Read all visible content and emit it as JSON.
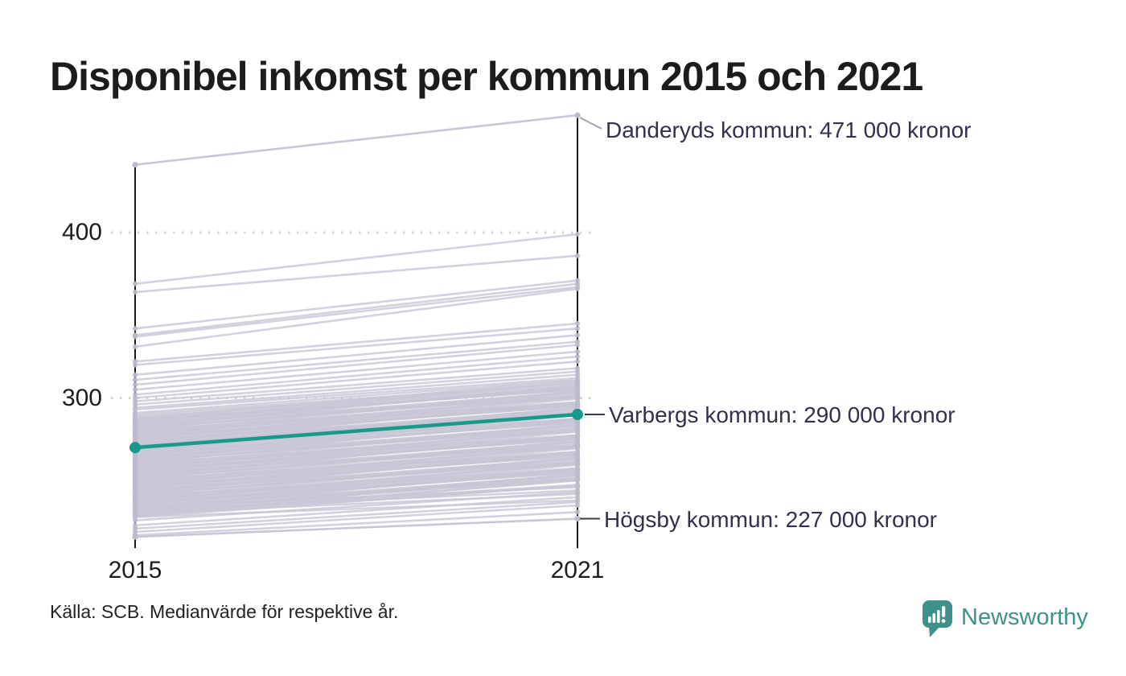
{
  "title": {
    "text": "Disponibel inkomst per kommun 2015 och 2021"
  },
  "source": {
    "text": "Källa: SCB. Medianvärde för respektive år."
  },
  "branding": {
    "name": "Newsworthy",
    "color": "#3E918A",
    "logo_icon": "speech-bubble-bar-chart-icon"
  },
  "colors": {
    "accent_teal": "#18998b",
    "line_gray": "#c8c6d5",
    "marker_gray": "#bcbacb",
    "axis_black": "#000000",
    "grid_dot_gray": "#d4d4d4",
    "annotation_text": "#30314a",
    "title_text": "#1c1c1a"
  },
  "chart_data": {
    "type": "line",
    "subtype": "slopegraph",
    "title": "Disponibel inkomst per kommun 2015 och 2021",
    "x_categories": [
      "2015",
      "2021"
    ],
    "y_ticks": [
      400,
      300
    ],
    "ylim": [
      210,
      480
    ],
    "values_unit": "kronor (tusental)",
    "grid": "dotted horizontal at y ticks",
    "legend": "none",
    "annotations": [
      {
        "id": "danderyd",
        "text": "Danderyds kommun: 471 000 kronor"
      },
      {
        "id": "varberg",
        "text": "Varbergs kommun: 290 000 kronor"
      },
      {
        "id": "hogsby",
        "text": "Högsby kommun: 227 000 kronor"
      }
    ],
    "highlight_series": [
      {
        "name": "Danderyds kommun",
        "values": [
          441,
          471
        ],
        "style": "neutral"
      },
      {
        "name": "Varbergs kommun",
        "values": [
          270,
          290
        ],
        "style": "accent"
      },
      {
        "name": "Högsby kommun",
        "values": [
          216,
          227
        ],
        "style": "neutral"
      }
    ],
    "background_lines": [
      [
        369,
        399
      ],
      [
        364,
        386
      ],
      [
        342,
        371
      ],
      [
        338,
        369
      ],
      [
        337,
        367
      ],
      [
        331,
        366
      ],
      [
        322,
        345
      ],
      [
        320,
        342
      ],
      [
        314,
        338
      ],
      [
        311,
        334
      ],
      [
        308,
        332
      ],
      [
        305,
        328
      ],
      [
        302,
        325
      ],
      [
        300,
        322
      ],
      [
        298,
        318
      ],
      [
        296,
        316
      ],
      [
        294,
        314
      ],
      [
        293,
        312
      ],
      [
        291,
        311
      ],
      [
        290,
        309
      ],
      [
        289,
        308
      ],
      [
        288,
        307
      ],
      [
        228,
        247
      ],
      [
        228.5,
        250.5
      ],
      [
        229,
        247
      ],
      [
        229.5,
        253.5
      ],
      [
        230,
        250
      ],
      [
        230.5,
        247.5
      ],
      [
        231,
        254
      ],
      [
        231.5,
        252.5
      ],
      [
        232,
        251
      ],
      [
        232.5,
        257.5
      ],
      [
        233,
        251
      ],
      [
        233.5,
        253.5
      ],
      [
        234,
        256
      ],
      [
        234.5,
        251.5
      ],
      [
        235,
        256
      ],
      [
        235.5,
        259.5
      ],
      [
        236,
        255
      ],
      [
        236.5,
        256.5
      ],
      [
        237,
        255
      ],
      [
        237.5,
        260.5
      ],
      [
        238,
        257
      ],
      [
        238.5,
        260.5
      ],
      [
        239,
        257
      ],
      [
        239.5,
        263.5
      ],
      [
        240,
        260
      ],
      [
        240.5,
        257.5
      ],
      [
        241,
        264
      ],
      [
        241.5,
        262.5
      ],
      [
        242,
        261
      ],
      [
        242.5,
        267.5
      ],
      [
        243,
        261
      ],
      [
        243.5,
        263.5
      ],
      [
        244,
        266
      ],
      [
        244.5,
        261.5
      ],
      [
        245,
        266
      ],
      [
        245.5,
        269.5
      ],
      [
        246,
        265
      ],
      [
        246.5,
        266.5
      ],
      [
        247,
        265
      ],
      [
        247.5,
        270.5
      ],
      [
        248,
        267
      ],
      [
        248.5,
        270.5
      ],
      [
        249,
        267
      ],
      [
        249.5,
        273.5
      ],
      [
        250,
        270
      ],
      [
        250.5,
        267.5
      ],
      [
        251,
        274
      ],
      [
        251.5,
        272.5
      ],
      [
        252,
        271
      ],
      [
        252.5,
        277.5
      ],
      [
        253,
        271
      ],
      [
        253.5,
        273.5
      ],
      [
        254,
        276
      ],
      [
        254.5,
        271.5
      ],
      [
        255,
        276
      ],
      [
        255.5,
        279.5
      ],
      [
        256,
        275
      ],
      [
        256.5,
        276.5
      ],
      [
        257,
        275
      ],
      [
        257.5,
        280.5
      ],
      [
        258,
        277
      ],
      [
        258.5,
        280.5
      ],
      [
        259,
        277
      ],
      [
        259.5,
        283.5
      ],
      [
        260,
        280
      ],
      [
        260.5,
        277.5
      ],
      [
        261,
        284
      ],
      [
        261.5,
        282.5
      ],
      [
        262,
        281
      ],
      [
        262.5,
        287.5
      ],
      [
        263,
        281
      ],
      [
        263.5,
        283.5
      ],
      [
        264,
        286
      ],
      [
        264.5,
        281.5
      ],
      [
        265,
        286
      ],
      [
        265.5,
        289.5
      ],
      [
        266,
        285
      ],
      [
        266.5,
        286.5
      ],
      [
        267,
        285
      ],
      [
        267.5,
        290.5
      ],
      [
        268,
        287
      ],
      [
        268.5,
        290.5
      ],
      [
        269,
        287
      ],
      [
        269.5,
        293.5
      ],
      [
        270,
        290
      ],
      [
        270.5,
        287.5
      ],
      [
        271,
        294
      ],
      [
        271.5,
        292.5
      ],
      [
        272,
        291
      ],
      [
        272.5,
        297.5
      ],
      [
        273,
        291
      ],
      [
        273.5,
        293.5
      ],
      [
        274,
        296
      ],
      [
        274.5,
        291.5
      ],
      [
        275,
        296
      ],
      [
        275.5,
        299.5
      ],
      [
        276,
        295
      ],
      [
        276.5,
        296.5
      ],
      [
        277,
        295
      ],
      [
        277.5,
        300.5
      ],
      [
        278,
        297
      ],
      [
        278.5,
        300.5
      ],
      [
        279,
        297
      ],
      [
        279.5,
        303.5
      ],
      [
        280,
        300
      ],
      [
        280.5,
        297.5
      ],
      [
        281,
        304
      ],
      [
        281.5,
        302.5
      ],
      [
        282,
        301
      ],
      [
        282.5,
        307.5
      ],
      [
        283,
        301
      ],
      [
        283.5,
        303.5
      ],
      [
        284,
        306
      ],
      [
        284.5,
        301.5
      ],
      [
        285,
        306
      ],
      [
        285.5,
        309.5
      ],
      [
        286,
        305
      ],
      [
        286.5,
        306.5
      ],
      [
        287,
        305
      ],
      [
        287.5,
        310.5
      ],
      [
        228,
        238
      ],
      [
        230,
        242
      ],
      [
        232,
        244
      ],
      [
        234,
        246
      ],
      [
        226,
        243
      ],
      [
        223,
        240
      ],
      [
        221,
        237
      ],
      [
        219,
        235
      ],
      [
        217,
        231
      ]
    ]
  }
}
